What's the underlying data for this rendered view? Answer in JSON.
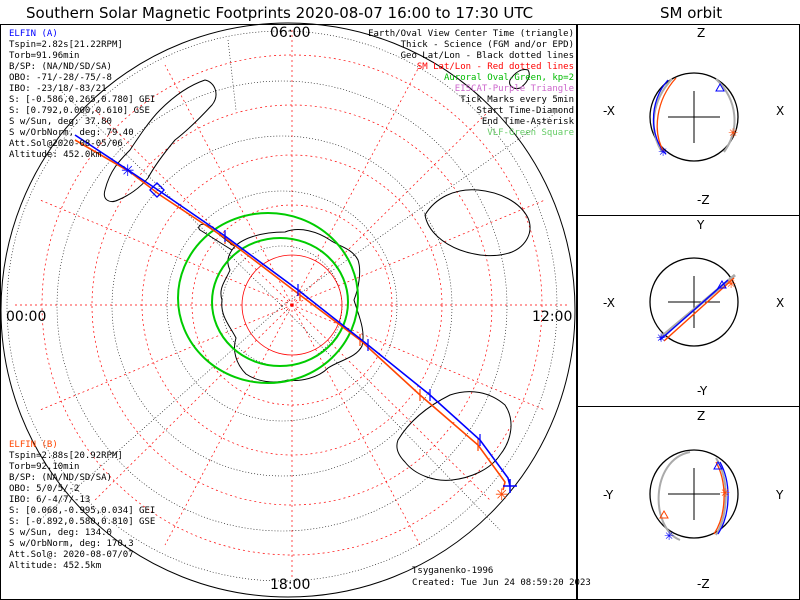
{
  "title": "Southern Solar Magnetic Footprints 2020-08-07 16:00 to 17:30 UTC",
  "orbit_title": "SM orbit",
  "time_ticks": {
    "top": "06:00",
    "left": "00:00",
    "right": "12:00",
    "bottom": "18:00"
  },
  "elfin_a": {
    "header": "ELFIN (A)",
    "color": "#0000ff",
    "lines": [
      "Tspin=2.82s[21.22RPM]",
      "Torb=91.96min",
      "B/SP: (NA/ND/SD/SA)",
      "OBO: -71/-28/-75/-8",
      "IBO: -23/18/-83/21",
      "S: [-0.586,0.265,0.780] GEI",
      "S: [0.792,0.000,0.610] GSE",
      "S w/Sun, deg: 37.80",
      "S w/OrbNorm, deg: 79.40",
      "Att.Sol@2020-08-05/06",
      "Altitude: 452.0km"
    ]
  },
  "elfin_b": {
    "header": "ELFIN (B)",
    "color": "#ff4500",
    "lines": [
      "Tspin=2.88s[20.92RPM]",
      "Torb=92.10min",
      "B/SP: (NA/ND/SD/SA)",
      "OBO: 5/0/5/-2",
      "IBO: 6/-4/7/-13",
      "S: [0.068,-0.995,0.034] GEI",
      "S: [-0.892,0.580,0.810] GSE",
      "S w/Sun, deg: 134.0",
      "S w/OrbNorm, deg: 170.3",
      "Att.Sol@: 2020-08-07/07",
      "Altitude: 452.5km"
    ]
  },
  "legend": [
    {
      "text": "Earth/Oval View Center Time (triangle)",
      "color": "#000000"
    },
    {
      "text": "Thick - Science (FGM and/or EPD)",
      "color": "#000000"
    },
    {
      "text": "Geo Lat/Lon - Black dotted lines",
      "color": "#000000"
    },
    {
      "text": "SM Lat/Lon - Red dotted lines",
      "color": "#ff0000"
    },
    {
      "text": "Auroral Oval-Green, kp=2",
      "color": "#00bb00"
    },
    {
      "text": "EISCAT-Purple Triangle",
      "color": "#cc66cc"
    },
    {
      "text": "Tick Marks every 5min",
      "color": "#000000"
    },
    {
      "text": "Start Time-Diamond",
      "color": "#000000"
    },
    {
      "text": "End Time-Asterisk",
      "color": "#000000"
    },
    {
      "text": "VLF-Green Square",
      "color": "#66cc66"
    }
  ],
  "footer": {
    "author": "Tsyganenko-1996",
    "created": "Created: Tue Jun 24 08:59:20 2023"
  },
  "orbit_panels": [
    {
      "top": "Z",
      "bottom": "-Z",
      "left": "-X",
      "right": "X"
    },
    {
      "top": "Y",
      "bottom": "-Y",
      "left": "-X",
      "right": "X"
    },
    {
      "top": "Z",
      "bottom": "-Z",
      "left": "-Y",
      "right": "Y"
    }
  ],
  "colors": {
    "sm_grid": "#ff0000",
    "oval": "#00cc00",
    "elfin_a": "#0000ff",
    "elfin_b": "#ff4500"
  }
}
